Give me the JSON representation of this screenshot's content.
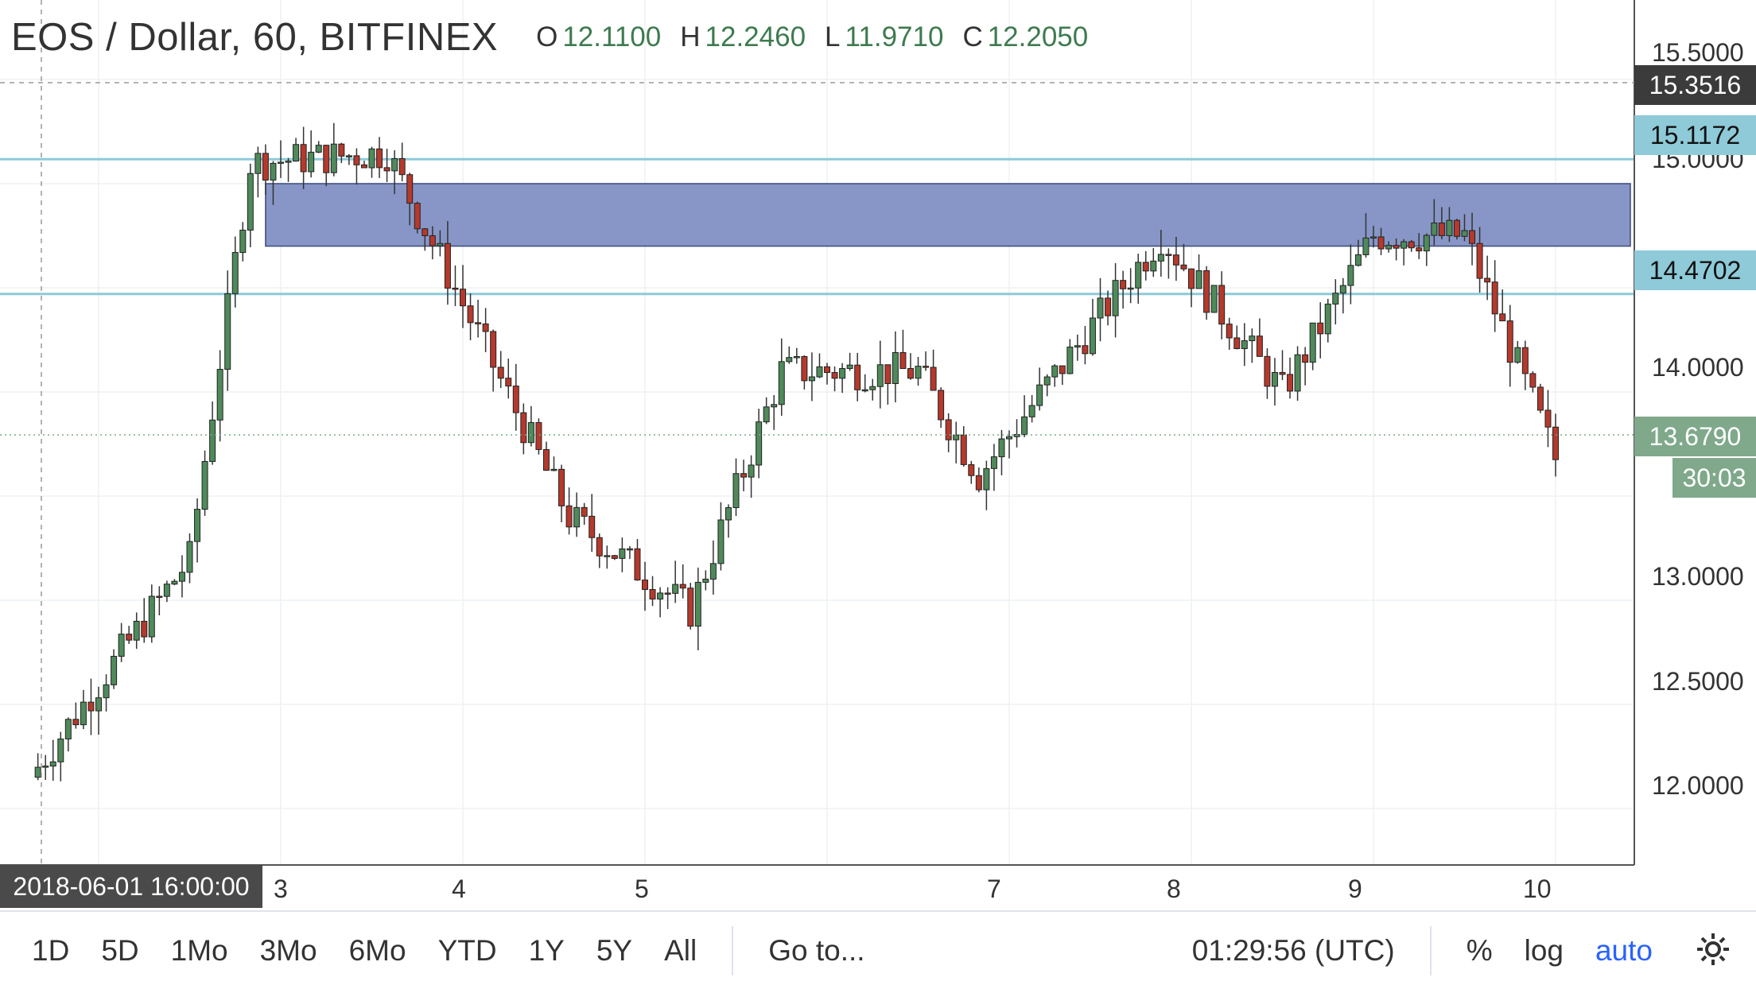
{
  "header": {
    "title": "EOS / Dollar, 60, BITFINEX",
    "ohlc": [
      {
        "key": "O",
        "value": "12.1100"
      },
      {
        "key": "H",
        "value": "12.2460"
      },
      {
        "key": "L",
        "value": "11.9710"
      },
      {
        "key": "C",
        "value": "12.2050"
      }
    ]
  },
  "price_axis": {
    "ticks": [
      "15.5000",
      "15.0000",
      "14.0000",
      "13.0000",
      "12.5000",
      "12.0000"
    ],
    "tags": [
      {
        "value": "15.3516",
        "style": "dark"
      },
      {
        "value": "15.1172",
        "style": "cyan"
      },
      {
        "value": "14.4702",
        "style": "cyan"
      },
      {
        "value": "13.6790",
        "style": "green"
      }
    ],
    "countdown": "30:03"
  },
  "time_axis": {
    "crosshair_date": "2018-06-01 16:00:00",
    "labels": [
      "3",
      "4",
      "5",
      "7",
      "8",
      "9",
      "10"
    ]
  },
  "toolbar": {
    "ranges": [
      "1D",
      "5D",
      "1Mo",
      "3Mo",
      "6Mo",
      "YTD",
      "1Y",
      "5Y",
      "All"
    ],
    "goto": "Go to...",
    "clock": "01:29:56 (UTC)",
    "percent": "%",
    "log": "log",
    "auto": "auto"
  },
  "colors": {
    "up": "#4f8a5b",
    "down": "#b5392c",
    "zone": "#8796c6",
    "hline": "#8ecad8",
    "auto": "#2962ff"
  },
  "chart_data": {
    "type": "candlestick",
    "title": "EOS / Dollar, 60, BITFINEX",
    "xlabel": "",
    "ylabel": "",
    "ylim": [
      11.85,
      15.7
    ],
    "horizontal_lines": [
      15.1172,
      14.4702
    ],
    "zone": [
      14.7,
      15.0
    ],
    "last_price": 13.679,
    "key_points": [
      {
        "t": "2018-06-01 16:00",
        "price": 12.2
      },
      {
        "t": "2018-06-02 12:00",
        "price": 13.2
      },
      {
        "t": "2018-06-02 20:00",
        "price": 15.1
      },
      {
        "t": "2018-06-03 14:00",
        "price": 15.15
      },
      {
        "t": "2018-06-04 14:00",
        "price": 13.4
      },
      {
        "t": "2018-06-05 06:00",
        "price": 12.95
      },
      {
        "t": "2018-06-05 18:00",
        "price": 14.1
      },
      {
        "t": "2018-06-06 12:00",
        "price": 14.1
      },
      {
        "t": "2018-06-06 20:00",
        "price": 13.6
      },
      {
        "t": "2018-06-07 20:00",
        "price": 14.75
      },
      {
        "t": "2018-06-08 12:00",
        "price": 14.0
      },
      {
        "t": "2018-06-09 00:00",
        "price": 14.75
      },
      {
        "t": "2018-06-09 12:00",
        "price": 14.75
      },
      {
        "t": "2018-06-10 00:00",
        "price": 13.68
      }
    ]
  }
}
